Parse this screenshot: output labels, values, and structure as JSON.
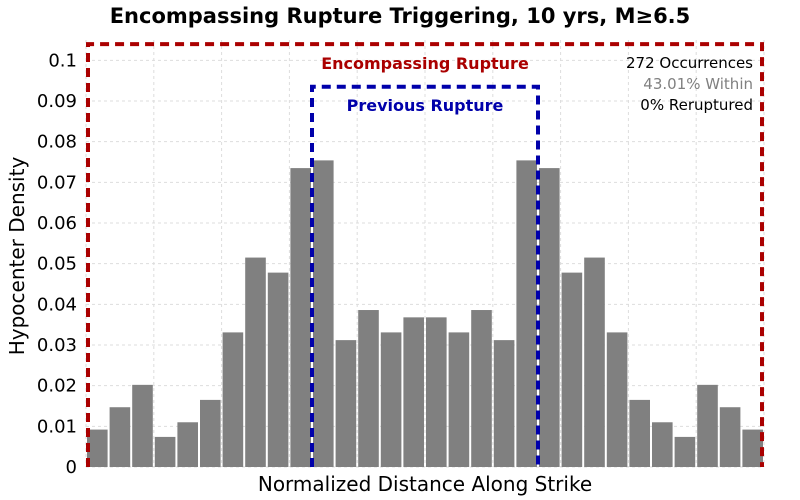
{
  "chart_data": {
    "type": "bar",
    "title": "Encompassing Rupture Triggering, 10 yrs, M≥6.5",
    "xlabel": "Normalized Distance Along Strike",
    "ylabel": "Hypocenter Density",
    "ylim": [
      0,
      0.105
    ],
    "yticks": [
      "0",
      "0.01",
      "0.02",
      "0.03",
      "0.04",
      "0.05",
      "0.06",
      "0.07",
      "0.08",
      "0.09",
      "0.1"
    ],
    "grid": true,
    "values": [
      0.0092,
      0.0147,
      0.0202,
      0.0074,
      0.011,
      0.0165,
      0.0331,
      0.0515,
      0.0478,
      0.0735,
      0.0754,
      0.0312,
      0.0386,
      0.0331,
      0.0368,
      0.0368,
      0.0331,
      0.0386,
      0.0312,
      0.0754,
      0.0735,
      0.0478,
      0.0515,
      0.0331,
      0.0165,
      0.011,
      0.0074,
      0.0202,
      0.0147,
      0.0092
    ],
    "bar_color": "#808080",
    "regions": [
      {
        "label": "Encompassing Rupture",
        "color": "#aa0000",
        "style": "dashed",
        "top": 0.104,
        "from_bin": 0,
        "to_bin": 30
      },
      {
        "label": "Previous Rupture",
        "color": "#0000aa",
        "style": "dashed",
        "top": 0.0935,
        "from_bin": 10,
        "to_bin": 20
      }
    ],
    "annotations": [
      {
        "text": "272 Occurrences",
        "color": "#000000"
      },
      {
        "text": "43.01% Within",
        "color": "#808080"
      },
      {
        "text": "0% Reruptured",
        "color": "#000000"
      }
    ]
  }
}
